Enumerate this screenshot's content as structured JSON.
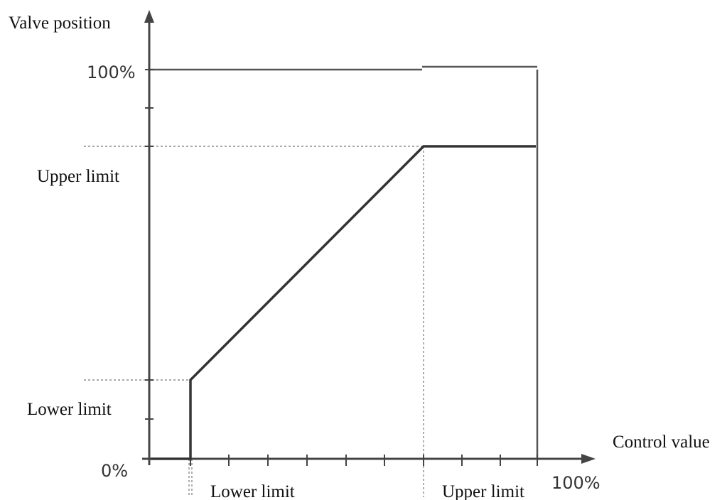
{
  "labels": {
    "y_axis_title": "Valve position",
    "x_axis_title": "Control value",
    "y_max": "100%",
    "y_upper": "Upper limit",
    "y_lower": "Lower limit",
    "origin": "0%",
    "x_lower": "Lower limit",
    "x_upper": "Upper limit",
    "x_max": "100%"
  },
  "colors": {
    "line": "#333333",
    "axis": "#444444",
    "guide": "#777777"
  }
}
